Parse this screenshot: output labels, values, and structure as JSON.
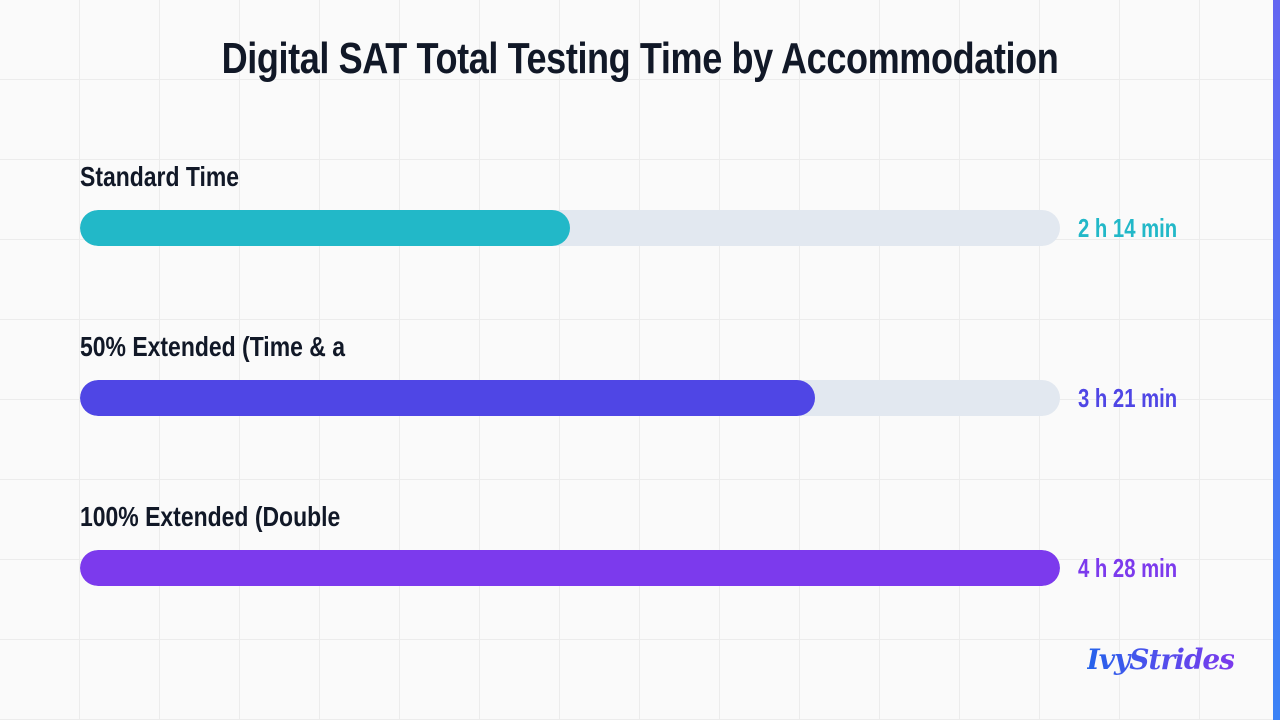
{
  "chart_data": {
    "type": "bar",
    "orientation": "horizontal",
    "title": "Digital SAT Total Testing Time by Accommodation",
    "xlim": [
      0,
      268
    ],
    "grid": true,
    "categories": [
      "Standard Time",
      "50% Extended (Time & a",
      "100% Extended (Double"
    ],
    "values": [
      134,
      201,
      268
    ],
    "value_labels": [
      "2 h 14 min",
      "3 h 21 min",
      "4 h 28 min"
    ],
    "colors": [
      "#22b8c8",
      "#4f46e5",
      "#7c3aed"
    ],
    "track_color": "#e2e8f0"
  },
  "branding": {
    "logo_text": "IvyStrides"
  }
}
